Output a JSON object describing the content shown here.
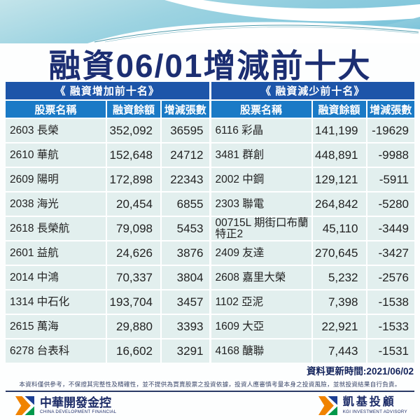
{
  "title": "融資06/01增減前十大",
  "chart_data": [
    {
      "type": "table",
      "name": "《 融資增加前十名》",
      "columns": [
        "股票名稱",
        "融資餘額",
        "增減張數"
      ],
      "rows": [
        [
          "2603 長榮",
          "352,092",
          "36595"
        ],
        [
          "2610 華航",
          "152,648",
          "24712"
        ],
        [
          "2609 陽明",
          "172,898",
          "22343"
        ],
        [
          "2038 海光",
          "20,454",
          "6855"
        ],
        [
          "2618 長榮航",
          "79,098",
          "5453"
        ],
        [
          "2601 益航",
          "24,626",
          "3876"
        ],
        [
          "2014 中鴻",
          "70,337",
          "3804"
        ],
        [
          "1314 中石化",
          "193,704",
          "3457"
        ],
        [
          "2615 萬海",
          "29,880",
          "3393"
        ],
        [
          "6278 台表科",
          "16,602",
          "3291"
        ]
      ]
    },
    {
      "type": "table",
      "name": "《 融資減少前十名》",
      "columns": [
        "股票名稱",
        "融資餘額",
        "增減張數"
      ],
      "rows": [
        [
          "6116 彩晶",
          "141,199",
          "-19629"
        ],
        [
          "3481 群創",
          "448,891",
          "-9988"
        ],
        [
          "2002 中鋼",
          "129,121",
          "-5911"
        ],
        [
          "2303 聯電",
          "264,842",
          "-5280"
        ],
        [
          "00715L 期街口布蘭特正2",
          "45,110",
          "-3449"
        ],
        [
          "2409 友達",
          "270,645",
          "-3427"
        ],
        [
          "2608 嘉里大榮",
          "5,232",
          "-2576"
        ],
        [
          "1102 亞泥",
          "7,398",
          "-1538"
        ],
        [
          "1609 大亞",
          "22,921",
          "-1533"
        ],
        [
          "4168 醣聯",
          "7,443",
          "-1531"
        ]
      ]
    }
  ],
  "footer": {
    "update_time": "資料更新時間:2021/06/02",
    "disclaimer": "本資料僅供參考，不保證其完整性及精確性，並不提供為買賣股票之投資依據，投資人應審慎考量本身之投資風險，並就投資結果自行負責。",
    "logos": [
      {
        "name": "中華開發金控",
        "subtitle": "CHINA DEVELOPMENT FINANCIAL"
      },
      {
        "name": "凱基投顧",
        "subtitle": "KGI INVESTMENT ADVISORY"
      }
    ]
  },
  "colors": {
    "section_header_bg": "#1d55a9",
    "column_header_bg": "#1a7ac6",
    "row_bg": "#e2efee",
    "title_navy": "#1c2e72",
    "banner_cyan_light": "#c3e4ea",
    "banner_cyan_deep": "#7fc5db",
    "logo_orange": "#f08300",
    "logo_blue": "#1c3f94",
    "logo_green": "#00984a"
  }
}
